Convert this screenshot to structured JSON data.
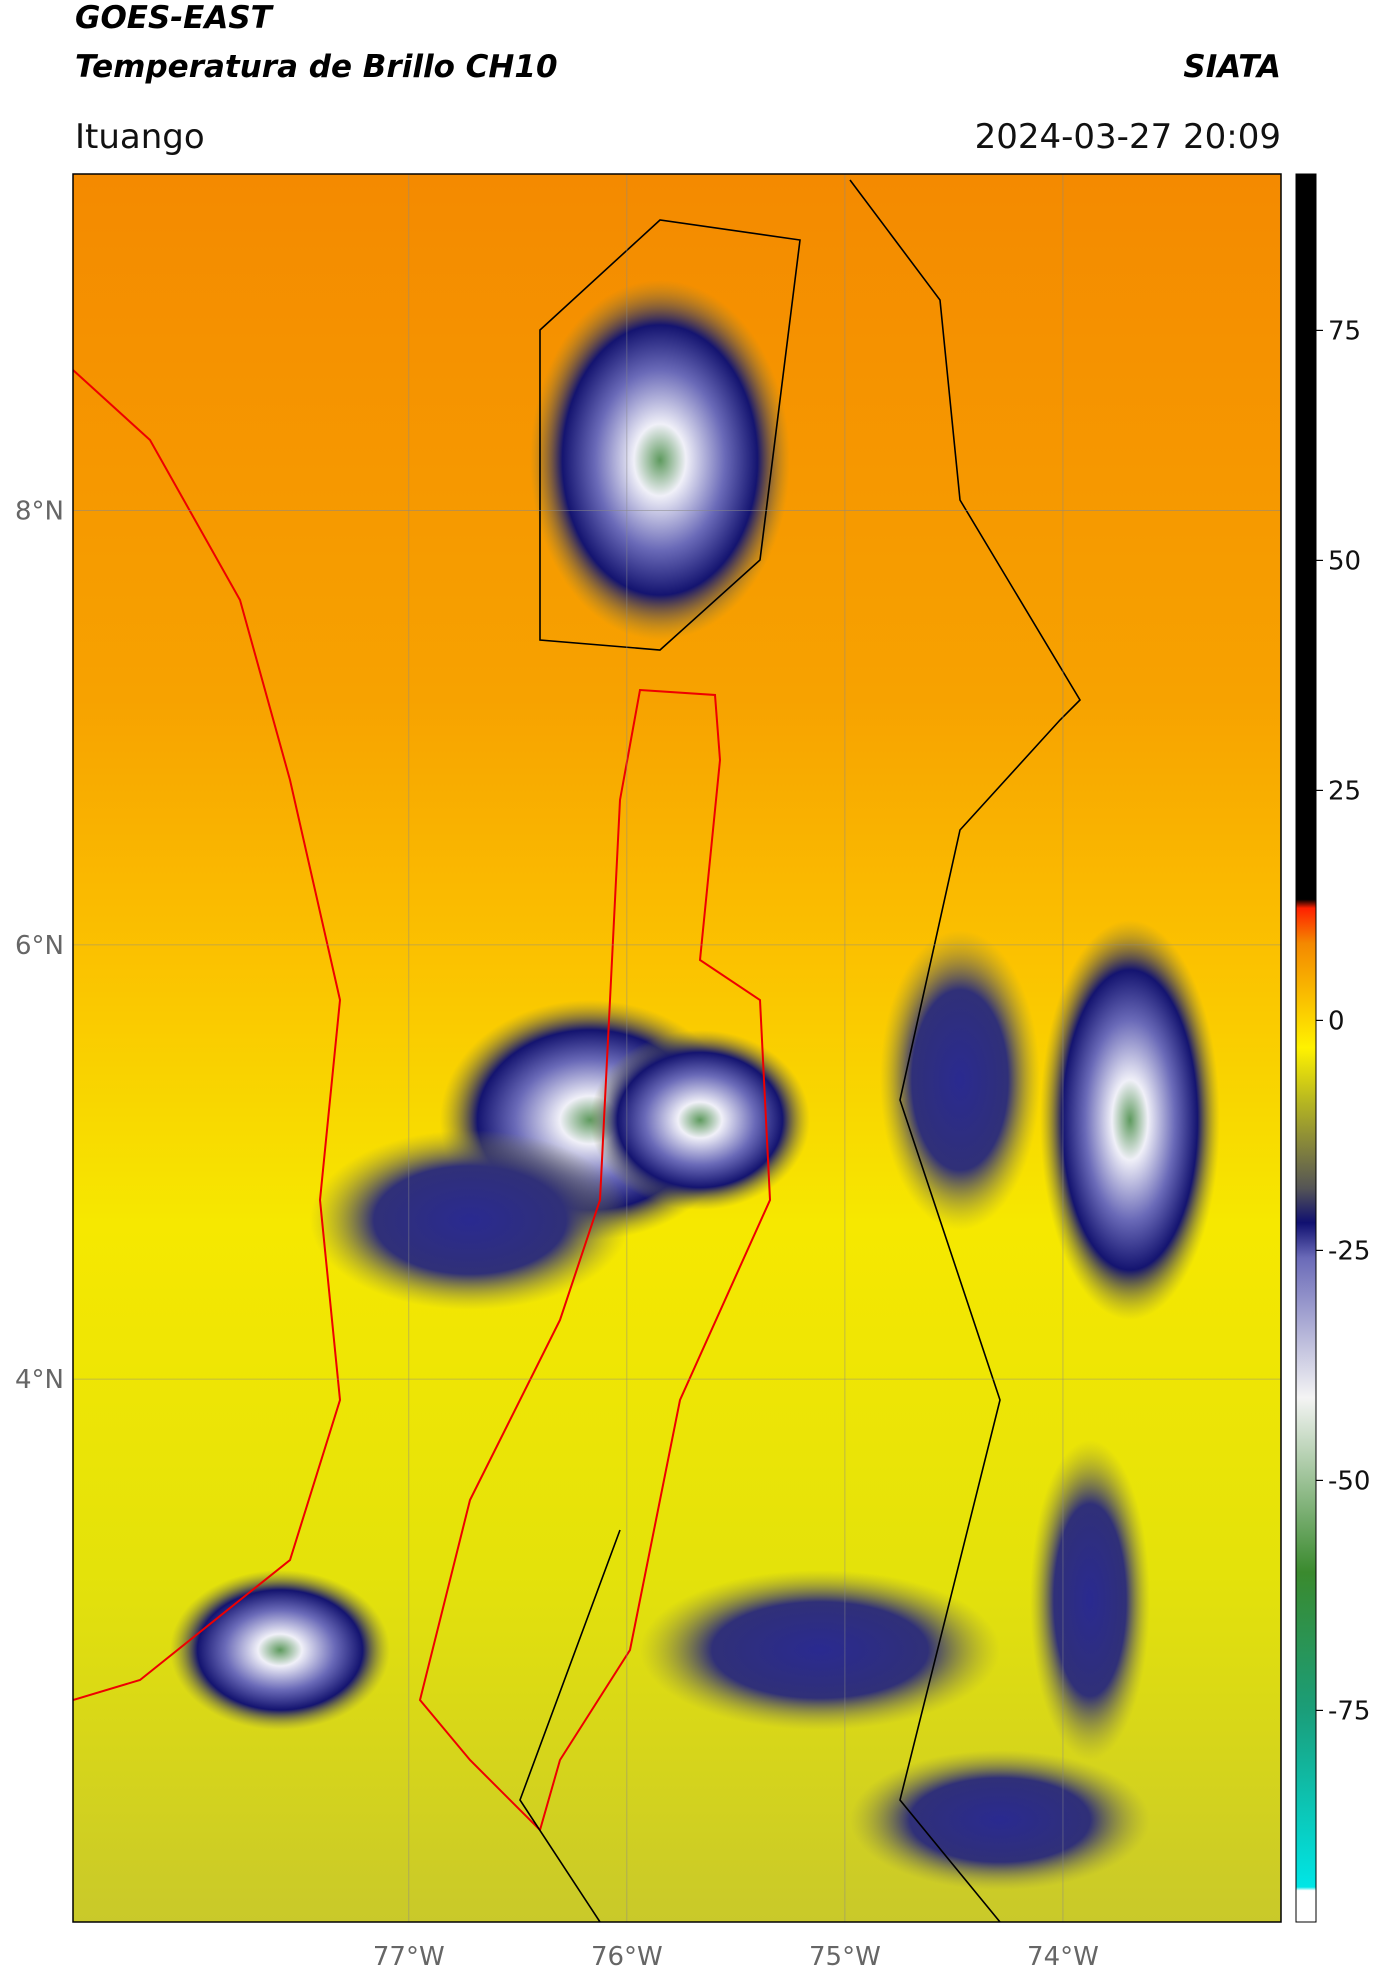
{
  "header": {
    "title": "GOES-EAST",
    "subtitle": "Temperatura de Brillo CH10",
    "source": "SIATA",
    "place": "Ituango",
    "datetime": "2024-03-27 20:09"
  },
  "map": {
    "lonlim": [
      -78.54,
      -73.0
    ],
    "latlim": [
      1.5,
      9.55
    ],
    "lon_ticks": [
      {
        "value": -77,
        "label": "77°W"
      },
      {
        "value": -76,
        "label": "76°W"
      },
      {
        "value": -75,
        "label": "75°W"
      },
      {
        "value": -74,
        "label": "74°W"
      }
    ],
    "lat_ticks": [
      {
        "value": 8,
        "label": "8°N"
      },
      {
        "value": 6,
        "label": "6°N"
      },
      {
        "value": 4,
        "label": "4°N"
      }
    ]
  },
  "colorbar": {
    "lim": [
      -98,
      92
    ],
    "ticks": [
      75,
      50,
      25,
      0,
      -25,
      -50,
      -75
    ]
  }
}
